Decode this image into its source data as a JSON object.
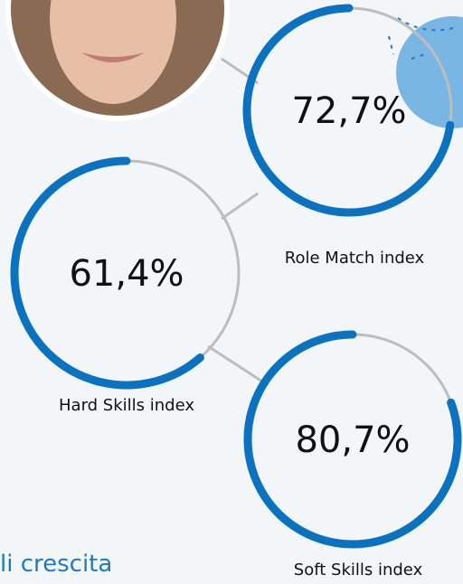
{
  "gauges": [
    {
      "value": 72.7,
      "value_label": "72,7%",
      "label": "Role Match index"
    },
    {
      "value": 61.4,
      "value_label": "61,4%",
      "label": "Hard Skills index"
    },
    {
      "value": 80.7,
      "value_label": "80,7%",
      "label": "Soft Skills index"
    }
  ],
  "footer_text": "li crescita"
}
